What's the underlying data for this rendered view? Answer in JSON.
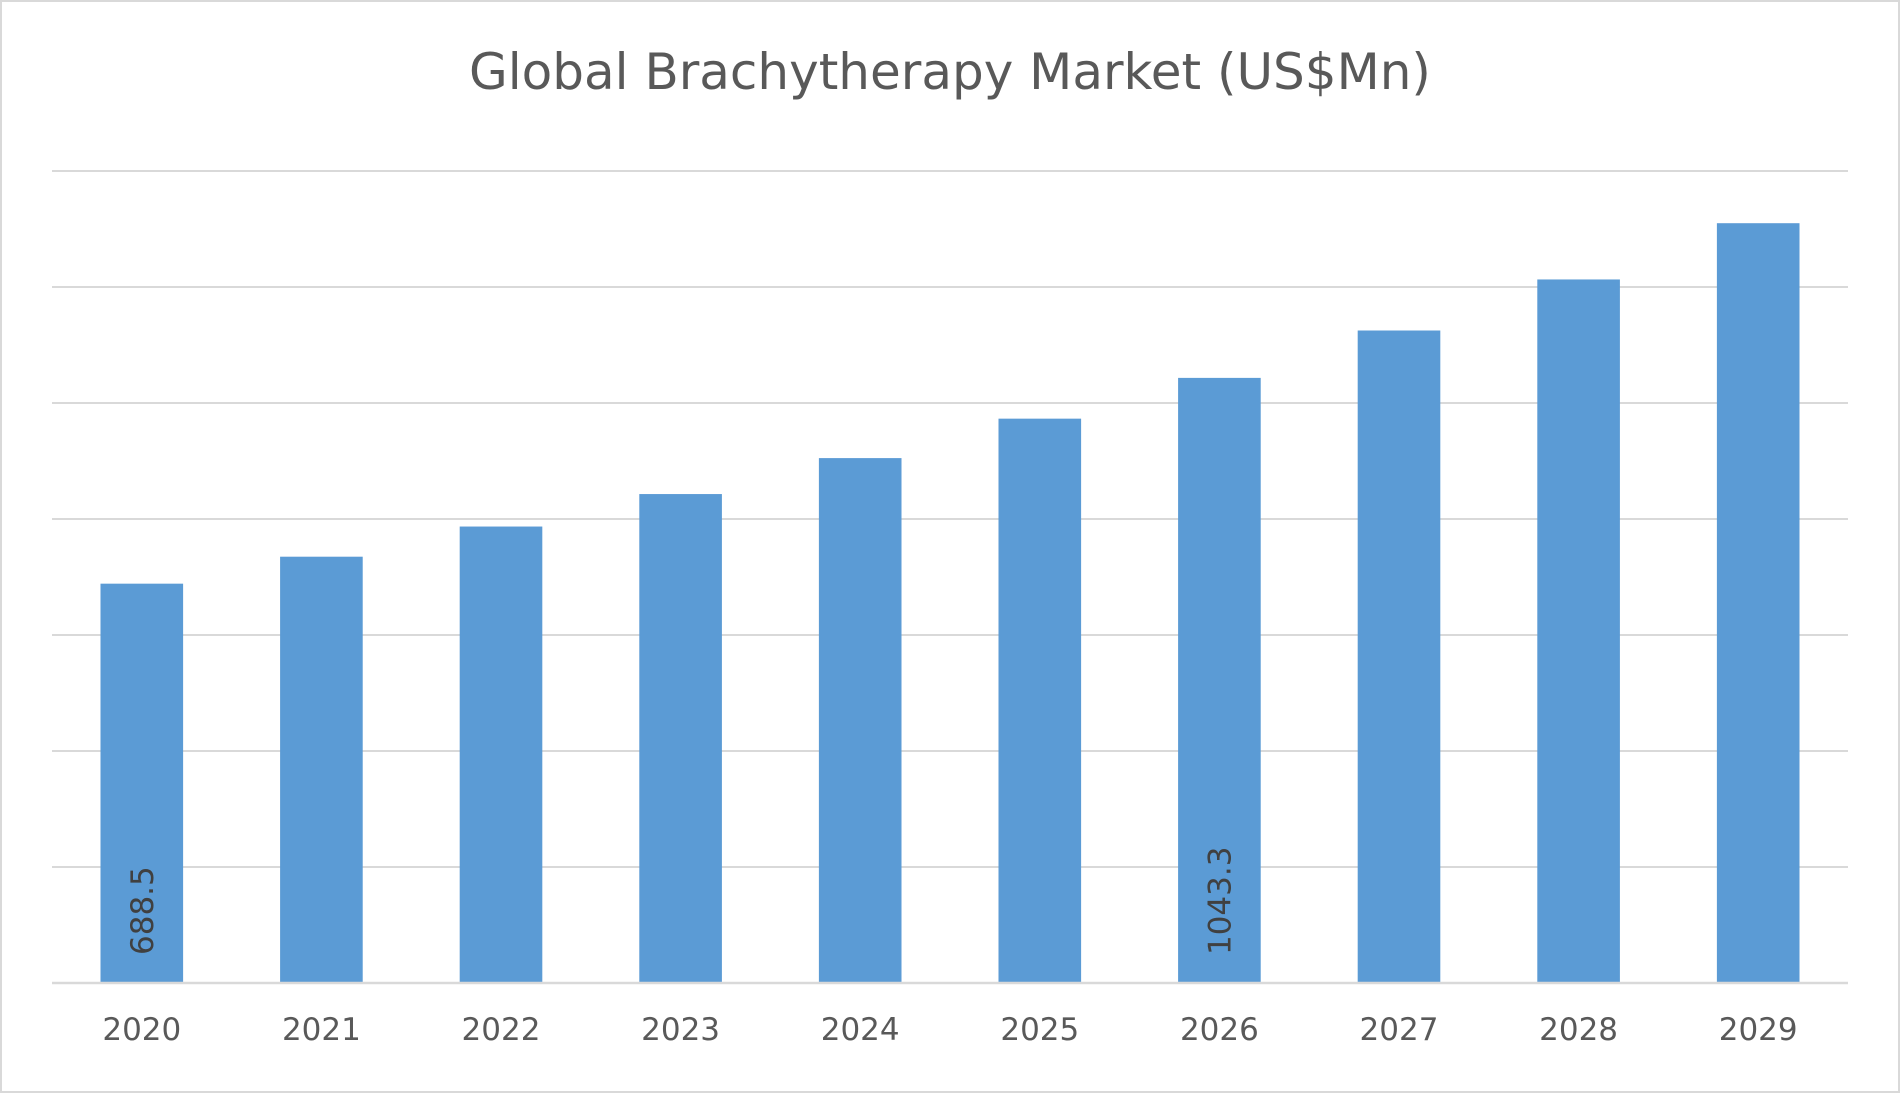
{
  "chart_data": {
    "type": "bar",
    "title": "Global Brachytherapy Market (US$Mn)",
    "xlabel": "",
    "ylabel": "",
    "categories": [
      "2020",
      "2021",
      "2022",
      "2023",
      "2024",
      "2025",
      "2026",
      "2027",
      "2028",
      "2029"
    ],
    "values": [
      688.5,
      735,
      787,
      843,
      905,
      973,
      1043.3,
      1125,
      1213,
      1310
    ],
    "data_labels": [
      "688.5",
      "",
      "",
      "",
      "",
      "",
      "1043.3",
      "",
      "",
      ""
    ],
    "ylim": [
      0,
      1400
    ],
    "y_gridline_step": 200,
    "y_tick_labels_shown": false,
    "grid": true,
    "legend": "none",
    "bar_color": "#5b9bd5",
    "grid_color": "#d9d9d9"
  }
}
